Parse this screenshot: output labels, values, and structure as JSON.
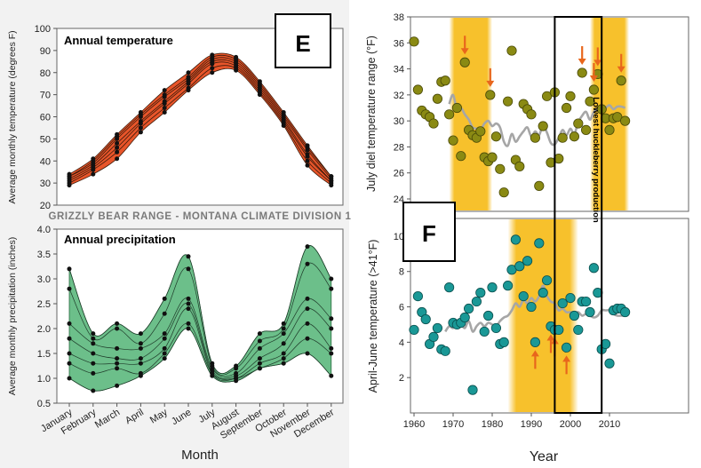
{
  "banner": "GRIZZLY BEAR RANGE - MONTANA CLIMATE DIVISION 1",
  "panel_e_letter": "E",
  "panel_f_letter": "F",
  "shared_xlabel_left": "Month",
  "shared_xlabel_right": "Year",
  "annotation_vertical": "Lowest huckleberry production",
  "colors": {
    "temp_band": "#e8552a",
    "precip_band": "#6cbf8a",
    "olive_points": "#8a8a13",
    "teal_points": "#1a9896",
    "smooth_line": "#a6a6a6",
    "shade": "#f7c12c",
    "arrow": "#e8661c"
  },
  "chart_data": [
    {
      "type": "line",
      "title": "Annual temperature",
      "xlabel": "",
      "ylabel": "Average monthly temperature (degrees F)",
      "ylim": [
        20,
        100
      ],
      "yticks": [
        "20",
        "30",
        "40",
        "50",
        "60",
        "70",
        "80",
        "90",
        "100"
      ],
      "categories": [
        "January",
        "February",
        "March",
        "April",
        "May",
        "June",
        "July",
        "August",
        "September",
        "October",
        "November",
        "December"
      ],
      "series": [
        {
          "values": [
            29,
            34,
            41,
            53,
            62,
            72,
            80,
            81,
            70,
            56,
            38,
            29
          ]
        },
        {
          "values": [
            30,
            36,
            44,
            55,
            64,
            73,
            82,
            82,
            71,
            57,
            40,
            30
          ]
        },
        {
          "values": [
            31,
            37,
            46,
            57,
            66,
            75,
            84,
            83,
            72,
            58,
            42,
            31
          ]
        },
        {
          "values": [
            32,
            38,
            48,
            58,
            67,
            76,
            85,
            84,
            73,
            59,
            43,
            31
          ]
        },
        {
          "values": [
            33,
            39,
            50,
            60,
            69,
            77,
            86,
            85,
            74,
            60,
            45,
            32
          ]
        },
        {
          "values": [
            33,
            40,
            51,
            61,
            70,
            78,
            87,
            86,
            75,
            61,
            46,
            33
          ]
        },
        {
          "values": [
            34,
            41,
            52,
            62,
            72,
            80,
            88,
            87,
            76,
            62,
            47,
            33
          ]
        }
      ],
      "grid": false
    },
    {
      "type": "line",
      "title": "Annual precipitation",
      "xlabel": "Month",
      "ylabel": "Average monthly precipitation (inches)",
      "ylim": [
        0.5,
        4.0
      ],
      "yticks": [
        "0.5",
        "1.0",
        "1.5",
        "2.0",
        "2.5",
        "3.0",
        "3.5",
        "4.0"
      ],
      "categories": [
        "January",
        "February",
        "March",
        "April",
        "May",
        "June",
        "July",
        "August",
        "September",
        "October",
        "November",
        "December"
      ],
      "series": [
        {
          "values": [
            3.2,
            1.9,
            2.1,
            1.9,
            2.6,
            3.45,
            1.3,
            1.25,
            1.9,
            2.1,
            3.65,
            3.0
          ]
        },
        {
          "values": [
            2.8,
            1.8,
            2.0,
            1.7,
            2.3,
            3.2,
            1.25,
            1.2,
            1.75,
            2.0,
            3.3,
            2.8
          ]
        },
        {
          "values": [
            2.1,
            1.7,
            1.6,
            1.6,
            1.9,
            2.6,
            1.2,
            1.1,
            1.6,
            1.9,
            2.6,
            2.2
          ]
        },
        {
          "values": [
            1.8,
            1.5,
            1.4,
            1.4,
            1.8,
            2.5,
            1.15,
            1.05,
            1.4,
            1.7,
            2.4,
            2.0
          ]
        },
        {
          "values": [
            1.5,
            1.3,
            1.3,
            1.3,
            1.6,
            2.4,
            1.1,
            1.0,
            1.3,
            1.5,
            2.1,
            1.6
          ]
        },
        {
          "values": [
            1.3,
            1.1,
            1.2,
            1.1,
            1.5,
            2.1,
            1.1,
            1.0,
            1.2,
            1.4,
            1.8,
            1.5
          ]
        },
        {
          "values": [
            1.0,
            0.75,
            0.85,
            1.05,
            1.4,
            2.0,
            1.05,
            0.95,
            1.2,
            1.3,
            1.5,
            1.05
          ]
        }
      ],
      "grid": false
    },
    {
      "type": "scatter",
      "title": "",
      "xlabel": "",
      "ylabel": "July diel temperature range (°F)",
      "xlim": [
        1959,
        2015
      ],
      "ylim": [
        24,
        38
      ],
      "xticks": [
        "1960",
        "1970",
        "1980",
        "1990",
        "2000",
        "2010"
      ],
      "yticks": [
        "24",
        "26",
        "28",
        "30",
        "32",
        "34",
        "36",
        "38"
      ],
      "shaded_ranges": [
        [
          1969,
          1980
        ],
        [
          2005,
          2015
        ]
      ],
      "highlight_box": [
        1996,
        2008
      ],
      "points": [
        [
          1960,
          36.1
        ],
        [
          1961,
          32.4
        ],
        [
          1962,
          30.8
        ],
        [
          1963,
          30.5
        ],
        [
          1964,
          30.3
        ],
        [
          1965,
          29.8
        ],
        [
          1966,
          31.7
        ],
        [
          1967,
          33.0
        ],
        [
          1968,
          33.1
        ],
        [
          1969,
          30.5
        ],
        [
          1970,
          28.5
        ],
        [
          1971,
          31.0
        ],
        [
          1972,
          27.3
        ],
        [
          1973,
          34.5
        ],
        [
          1974,
          29.3
        ],
        [
          1975,
          28.9
        ],
        [
          1976,
          28.7
        ],
        [
          1977,
          29.2
        ],
        [
          1978,
          27.2
        ],
        [
          1979,
          26.9
        ],
        [
          1979.5,
          32.0
        ],
        [
          1980,
          27.2
        ],
        [
          1981,
          28.8
        ],
        [
          1982,
          26.3
        ],
        [
          1983,
          24.5
        ],
        [
          1984,
          31.5
        ],
        [
          1985,
          35.4
        ],
        [
          1986,
          27.0
        ],
        [
          1987,
          26.5
        ],
        [
          1988,
          31.3
        ],
        [
          1989,
          30.9
        ],
        [
          1990,
          30.5
        ],
        [
          1991,
          28.7
        ],
        [
          1992,
          25.0
        ],
        [
          1993,
          29.6
        ],
        [
          1994,
          31.9
        ],
        [
          1995,
          26.8
        ],
        [
          1996,
          32.2
        ],
        [
          1997,
          27.1
        ],
        [
          1998,
          28.7
        ],
        [
          1999,
          31.0
        ],
        [
          2000,
          31.9
        ],
        [
          2001,
          28.8
        ],
        [
          2002,
          29.8
        ],
        [
          2003,
          33.7
        ],
        [
          2004,
          29.3
        ],
        [
          2005,
          31.5
        ],
        [
          2006,
          32.4
        ],
        [
          2007,
          33.6
        ],
        [
          2008,
          30.9
        ],
        [
          2009,
          30.2
        ],
        [
          2010,
          29.3
        ],
        [
          2011,
          30.2
        ],
        [
          2012,
          30.3
        ],
        [
          2013,
          33.1
        ],
        [
          2014,
          30.0
        ]
      ],
      "smooth_line": [
        [
          1969,
          31.3
        ],
        [
          1970,
          32.0
        ],
        [
          1971,
          30.8
        ],
        [
          1972,
          31.0
        ],
        [
          1973,
          30.5
        ],
        [
          1974,
          30.1
        ],
        [
          1975,
          29.5
        ],
        [
          1976,
          29.4
        ],
        [
          1977,
          29.3
        ],
        [
          1978,
          29.8
        ],
        [
          1979,
          30.0
        ],
        [
          1980,
          29.6
        ],
        [
          1981,
          29.8
        ],
        [
          1982,
          29.5
        ],
        [
          1983,
          28.4
        ],
        [
          1984,
          28.1
        ],
        [
          1985,
          29.0
        ],
        [
          1986,
          28.4
        ],
        [
          1987,
          28.8
        ],
        [
          1988,
          29.2
        ],
        [
          1989,
          29.5
        ],
        [
          1990,
          28.8
        ],
        [
          1991,
          29.2
        ],
        [
          1992,
          28.9
        ],
        [
          1993,
          29.7
        ],
        [
          1994,
          29.1
        ],
        [
          1995,
          28.3
        ],
        [
          1996,
          28.2
        ],
        [
          1997,
          28.7
        ],
        [
          1998,
          29.3
        ],
        [
          1999,
          28.9
        ],
        [
          2000,
          29.4
        ],
        [
          2001,
          29.0
        ],
        [
          2002,
          29.9
        ],
        [
          2003,
          30.4
        ],
        [
          2004,
          30.7
        ],
        [
          2005,
          30.1
        ],
        [
          2006,
          30.7
        ],
        [
          2007,
          30.9
        ],
        [
          2008,
          30.8
        ],
        [
          2009,
          31.0
        ],
        [
          2010,
          31.2
        ],
        [
          2011,
          30.9
        ],
        [
          2012,
          31.1
        ],
        [
          2013,
          31.1
        ],
        [
          2014,
          31.0
        ]
      ],
      "arrows_at": [
        [
          1973,
          34.5
        ],
        [
          1979.5,
          32.0
        ],
        [
          2003,
          33.7
        ],
        [
          2006,
          32.4
        ],
        [
          2007,
          33.6
        ],
        [
          2013,
          33.1
        ]
      ],
      "grid": false
    },
    {
      "type": "scatter",
      "title": "",
      "xlabel": "Year",
      "ylabel": "April-June temperature (>41°F)",
      "xlim": [
        1959,
        2015
      ],
      "ylim": [
        0,
        11
      ],
      "xticks": [
        "1960",
        "1970",
        "1980",
        "1990",
        "2000",
        "2010"
      ],
      "yticks": [
        "2",
        "4",
        "6",
        "8",
        "10"
      ],
      "shaded_ranges": [
        [
          1984,
          2002
        ]
      ],
      "highlight_box": [
        1996,
        2008
      ],
      "points": [
        [
          1960,
          4.7
        ],
        [
          1961,
          6.6
        ],
        [
          1962,
          5.7
        ],
        [
          1963,
          5.3
        ],
        [
          1964,
          3.9
        ],
        [
          1965,
          4.3
        ],
        [
          1966,
          4.8
        ],
        [
          1967,
          3.6
        ],
        [
          1968,
          3.5
        ],
        [
          1969,
          7.1
        ],
        [
          1970,
          5.1
        ],
        [
          1971,
          5.0
        ],
        [
          1972,
          5.1
        ],
        [
          1973,
          5.4
        ],
        [
          1974,
          5.9
        ],
        [
          1975,
          1.3
        ],
        [
          1976,
          6.3
        ],
        [
          1977,
          6.8
        ],
        [
          1978,
          4.6
        ],
        [
          1979,
          5.5
        ],
        [
          1980,
          7.1
        ],
        [
          1981,
          4.8
        ],
        [
          1982,
          3.9
        ],
        [
          1983,
          4.0
        ],
        [
          1984,
          7.2
        ],
        [
          1985,
          8.1
        ],
        [
          1986,
          9.8
        ],
        [
          1987,
          8.3
        ],
        [
          1988,
          6.6
        ],
        [
          1989,
          8.6
        ],
        [
          1990,
          6.0
        ],
        [
          1991,
          4.0
        ],
        [
          1992,
          9.6
        ],
        [
          1993,
          6.8
        ],
        [
          1994,
          7.5
        ],
        [
          1995,
          4.9
        ],
        [
          1996,
          4.7
        ],
        [
          1997,
          4.7
        ],
        [
          1998,
          6.2
        ],
        [
          1999,
          3.7
        ],
        [
          2000,
          6.5
        ],
        [
          2001,
          5.5
        ],
        [
          2002,
          4.7
        ],
        [
          2003,
          6.3
        ],
        [
          2004,
          6.3
        ],
        [
          2005,
          5.7
        ],
        [
          2006,
          8.2
        ],
        [
          2007,
          6.8
        ],
        [
          2008,
          3.6
        ],
        [
          2009,
          3.9
        ],
        [
          2010,
          2.8
        ],
        [
          2011,
          5.8
        ],
        [
          2012,
          5.9
        ],
        [
          2013,
          5.9
        ],
        [
          2014,
          5.7
        ]
      ],
      "smooth_line": [
        [
          1968,
          4.6
        ],
        [
          1969,
          4.9
        ],
        [
          1970,
          4.8
        ],
        [
          1971,
          5.0
        ],
        [
          1972,
          5.0
        ],
        [
          1973,
          4.8
        ],
        [
          1974,
          5.2
        ],
        [
          1975,
          4.6
        ],
        [
          1976,
          4.9
        ],
        [
          1977,
          5.1
        ],
        [
          1978,
          4.9
        ],
        [
          1979,
          5.1
        ],
        [
          1980,
          5.0
        ],
        [
          1981,
          4.9
        ],
        [
          1982,
          5.2
        ],
        [
          1983,
          5.4
        ],
        [
          1984,
          5.5
        ],
        [
          1985,
          5.8
        ],
        [
          1986,
          6.2
        ],
        [
          1987,
          6.0
        ],
        [
          1988,
          6.4
        ],
        [
          1989,
          6.2
        ],
        [
          1990,
          6.5
        ],
        [
          1991,
          6.3
        ],
        [
          1992,
          6.6
        ],
        [
          1993,
          7.2
        ],
        [
          1994,
          6.6
        ],
        [
          1995,
          6.3
        ],
        [
          1996,
          6.2
        ],
        [
          1997,
          5.8
        ],
        [
          1998,
          5.9
        ],
        [
          1999,
          5.7
        ],
        [
          2000,
          5.7
        ],
        [
          2001,
          5.6
        ],
        [
          2002,
          5.7
        ],
        [
          2003,
          5.5
        ],
        [
          2004,
          5.6
        ],
        [
          2005,
          5.5
        ],
        [
          2006,
          5.4
        ],
        [
          2007,
          5.5
        ],
        [
          2008,
          5.8
        ],
        [
          2009,
          5.8
        ],
        [
          2010,
          5.8
        ],
        [
          2011,
          5.6
        ],
        [
          2012,
          5.5
        ],
        [
          2013,
          5.5
        ],
        [
          2014,
          5.5
        ]
      ],
      "arrows_at": [
        [
          1991,
          4.0
        ],
        [
          1995,
          4.9
        ],
        [
          1996,
          4.7
        ],
        [
          1999,
          3.7
        ]
      ],
      "grid": false
    }
  ]
}
